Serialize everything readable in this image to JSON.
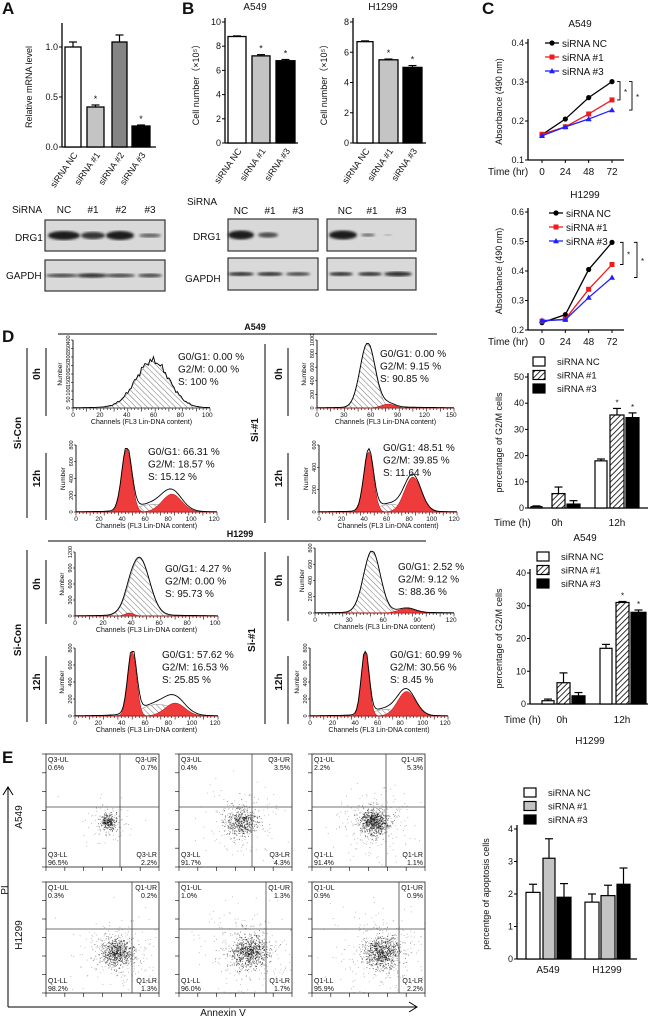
{
  "panel_labels": {
    "A": "A",
    "B": "B",
    "C": "C",
    "D": "D",
    "E": "E"
  },
  "colors": {
    "red": "#ee3b3b",
    "blue": "#1f1fff",
    "black": "#000000",
    "light_gray": "#c4c4c4",
    "dark_gray": "#858585"
  },
  "chart_data": [
    {
      "id": "A",
      "type": "bar",
      "title": "",
      "ylabel": "Relative mRNA level",
      "categories": [
        "siRNA NC",
        "siRNA #1",
        "siRNA #2",
        "siRNA #3"
      ],
      "values": [
        1.0,
        0.4,
        1.05,
        0.21
      ],
      "errors": [
        0.05,
        0.02,
        0.07,
        0.01
      ],
      "significance": [
        "",
        "*",
        "",
        "*"
      ],
      "ylim": [
        0,
        1.2
      ],
      "yticks": [
        "0.0",
        "0.5",
        "1.0"
      ],
      "fills": [
        "#ffffff",
        "#c4c4c4",
        "#858585",
        "#000000"
      ]
    },
    {
      "id": "B-A549",
      "type": "bar",
      "title": "A549",
      "ylabel": "Cell number（×10⁵）",
      "categories": [
        "siRNA NC",
        "siRNA #1",
        "siRNA #3"
      ],
      "values": [
        8.8,
        7.2,
        6.8
      ],
      "errors": [
        0.05,
        0.1,
        0.1
      ],
      "significance": [
        "",
        "*",
        "*"
      ],
      "ylim": [
        0,
        10
      ],
      "yticks": [
        "0",
        "2",
        "4",
        "6",
        "8",
        "10"
      ],
      "fills": [
        "#ffffff",
        "#c4c4c4",
        "#000000"
      ]
    },
    {
      "id": "B-H1299",
      "type": "bar",
      "title": "H1299",
      "ylabel": "Cell number（×10⁵）",
      "categories": [
        "siRNA NC",
        "siRNA #1",
        "siRNA #3"
      ],
      "values": [
        6.7,
        5.5,
        5.0
      ],
      "errors": [
        0.05,
        0.05,
        0.12
      ],
      "significance": [
        "",
        "*",
        "*"
      ],
      "ylim": [
        0,
        8
      ],
      "yticks": [
        "0",
        "2",
        "4",
        "6",
        "8"
      ],
      "fills": [
        "#ffffff",
        "#c4c4c4",
        "#000000"
      ]
    },
    {
      "id": "C-A549",
      "type": "line",
      "title": "A549",
      "xlabel": "Time (hr)",
      "ylabel": "Absorbance (490 nm)",
      "x": [
        0,
        24,
        48,
        72
      ],
      "xticks": [
        "0",
        "24",
        "48",
        "72"
      ],
      "ylim": [
        0.1,
        0.4
      ],
      "yticks": [
        "0.1",
        "0.2",
        "0.3",
        "0.4"
      ],
      "series": [
        {
          "name": "siRNA NC",
          "color": "#000000",
          "marker": "circle",
          "values": [
            0.165,
            0.205,
            0.26,
            0.301
          ]
        },
        {
          "name": "siRNA #1",
          "color": "#ee1c1c",
          "marker": "square",
          "values": [
            0.166,
            0.185,
            0.218,
            0.254
          ]
        },
        {
          "name": "siRNA #3",
          "color": "#1f1fff",
          "marker": "triangle",
          "values": [
            0.162,
            0.185,
            0.205,
            0.228
          ]
        }
      ],
      "significance": [
        "*",
        "*"
      ]
    },
    {
      "id": "C-H1299",
      "type": "line",
      "title": "H1299",
      "xlabel": "Time (hr)",
      "ylabel": "Absorbance (490 nm)",
      "x": [
        0,
        24,
        48,
        72
      ],
      "xticks": [
        "0",
        "24",
        "48",
        "72"
      ],
      "ylim": [
        0.2,
        0.6
      ],
      "yticks": [
        "0.2",
        "0.3",
        "0.4",
        "0.5",
        "0.6"
      ],
      "series": [
        {
          "name": "siRNA NC",
          "color": "#000000",
          "marker": "circle",
          "values": [
            0.225,
            0.252,
            0.405,
            0.497
          ]
        },
        {
          "name": "siRNA #1",
          "color": "#ee1c1c",
          "marker": "square",
          "values": [
            0.23,
            0.237,
            0.338,
            0.422
          ]
        },
        {
          "name": "siRNA #3",
          "color": "#1f1fff",
          "marker": "triangle",
          "values": [
            0.232,
            0.235,
            0.31,
            0.378
          ]
        }
      ],
      "significance": [
        "*",
        "*"
      ]
    },
    {
      "id": "D-A549",
      "type": "bar",
      "title": "A549",
      "xlabel": "Time (h)",
      "ylabel": "percentage of G2/M cells",
      "categories": [
        "0h",
        "12h"
      ],
      "ylim": [
        0,
        50
      ],
      "yticks": [
        "0",
        "10",
        "20",
        "30",
        "40",
        "50"
      ],
      "series": [
        {
          "name": "siRNA NC",
          "fill": "#ffffff",
          "values": [
            0.5,
            18
          ],
          "errors": [
            0.3,
            0.7
          ],
          "significance": [
            "",
            ""
          ]
        },
        {
          "name": "siRNA #1",
          "fill": "hatch",
          "values": [
            5.5,
            35.5
          ],
          "errors": [
            2.5,
            2.5
          ],
          "significance": [
            "",
            "*"
          ]
        },
        {
          "name": "siRNA #3",
          "fill": "#000000",
          "values": [
            1.5,
            34.5
          ],
          "errors": [
            1.3,
            1.8
          ],
          "significance": [
            "",
            "*"
          ]
        }
      ]
    },
    {
      "id": "D-H1299",
      "type": "bar",
      "title": "H1299",
      "xlabel": "Time (h)",
      "ylabel": "percentage of G2/M cells",
      "categories": [
        "0h",
        "12h"
      ],
      "ylim": [
        0,
        40
      ],
      "yticks": [
        "0",
        "10",
        "20",
        "30",
        "40"
      ],
      "series": [
        {
          "name": "siRNA NC",
          "fill": "#ffffff",
          "values": [
            1,
            17
          ],
          "errors": [
            0.5,
            1.2
          ],
          "significance": [
            "",
            ""
          ]
        },
        {
          "name": "siRNA #1",
          "fill": "hatch",
          "values": [
            6.5,
            31
          ],
          "errors": [
            3,
            0.3
          ],
          "significance": [
            "",
            "*"
          ]
        },
        {
          "name": "siRNA #3",
          "fill": "#000000",
          "values": [
            2.5,
            28
          ],
          "errors": [
            1,
            0.7
          ],
          "significance": [
            "",
            "*"
          ]
        }
      ]
    },
    {
      "id": "E",
      "type": "bar",
      "title": "",
      "xlabel": "",
      "ylabel": "percentge of apoptosis cells",
      "categories": [
        "A549",
        "H1299"
      ],
      "ylim": [
        0,
        4
      ],
      "yticks": [
        "0",
        "1",
        "2",
        "3",
        "4"
      ],
      "series": [
        {
          "name": "siRNA NC",
          "fill": "#ffffff",
          "values": [
            2.05,
            1.75
          ],
          "errors": [
            0.25,
            0.25
          ],
          "significance": [
            "",
            ""
          ]
        },
        {
          "name": "siRNA #1",
          "fill": "#c4c4c4",
          "values": [
            3.1,
            1.95
          ],
          "errors": [
            0.6,
            0.32
          ],
          "significance": [
            "",
            ""
          ]
        },
        {
          "name": "siRNA #3",
          "fill": "#000000",
          "values": [
            1.9,
            2.3
          ],
          "errors": [
            0.42,
            0.5
          ],
          "significance": [
            "",
            ""
          ]
        }
      ]
    }
  ],
  "blots": {
    "A": {
      "header": "SiRNA",
      "lanes": [
        "NC",
        "#1",
        "#2",
        "#3"
      ],
      "rows": [
        "DRG1",
        "GAPDH"
      ]
    },
    "B": {
      "header": "SiRNA",
      "lanes_a549": [
        "NC",
        "#1",
        "#3"
      ],
      "lanes_h1299": [
        "NC",
        "#1",
        "#3"
      ],
      "rows": [
        "DRG1",
        "GAPDH"
      ]
    }
  },
  "cell_cycle": {
    "headers": [
      "A549",
      "H1299"
    ],
    "conditions": [
      "Si-Con",
      "Si-#1"
    ],
    "times": [
      "0h",
      "12h"
    ],
    "xlabel": "Channels (FL3 Lin-DNA content)",
    "ylabel": "Number",
    "panels": [
      {
        "cell": "A549",
        "condition": "Si-Con",
        "time": "0h",
        "stats": [
          "G0/G1:   0.00 %",
          "G2/M:   0.00 %",
          "S:   100 %"
        ],
        "xticks": [
          "0",
          "20",
          "40",
          "60",
          "80",
          "100"
        ],
        "yticks": [
          "0",
          "50",
          "100",
          "150",
          "200",
          "250",
          "300",
          "350",
          "400"
        ]
      },
      {
        "cell": "A549",
        "condition": "Si-#1",
        "time": "0h",
        "stats": [
          "G0/G1:   0.00 %",
          "G2/M:   9.15 %",
          "S:   90.85 %"
        ],
        "xticks": [
          "0",
          "30",
          "60",
          "90",
          "120",
          "150"
        ],
        "yticks": [
          "0",
          "200",
          "400",
          "600",
          "800",
          "1000"
        ]
      },
      {
        "cell": "A549",
        "condition": "Si-Con",
        "time": "12h",
        "stats": [
          "G0/G1:   66.31 %",
          "G2/M:   18.57 %",
          "S:   15.12 %"
        ],
        "xticks": [
          "0",
          "20",
          "40",
          "60",
          "80",
          "100",
          "120"
        ],
        "yticks": [
          "0",
          "200",
          "400",
          "600",
          "800"
        ]
      },
      {
        "cell": "A549",
        "condition": "Si-#1",
        "time": "12h",
        "stats": [
          "G0/G1: 48.51 %",
          "G2/M:  39.85 %",
          "S:  11.64 %"
        ],
        "xticks": [
          "0",
          "20",
          "40",
          "60",
          "80",
          "100",
          "120"
        ],
        "yticks": [
          "0",
          "200",
          "400",
          "600"
        ]
      },
      {
        "cell": "H1299",
        "condition": "Si-Con",
        "time": "0h",
        "stats": [
          "G0/G1: 4.27 %",
          "G2/M: 0.00 %",
          "S:   95.73 %"
        ],
        "xticks": [
          "0",
          "20",
          "40",
          "60",
          "80",
          "100"
        ],
        "yticks": [
          "0",
          "300",
          "600",
          "900",
          "1200"
        ]
      },
      {
        "cell": "H1299",
        "condition": "Si-#1",
        "time": "0h",
        "stats": [
          "G0/G1: 2.52 %",
          "G2/M:  9.12 %",
          "S: 88.36 %"
        ],
        "xticks": [
          "0",
          "30",
          "60",
          "90",
          "120"
        ],
        "yticks": [
          "0",
          "200",
          "400",
          "600",
          "800"
        ]
      },
      {
        "cell": "H1299",
        "condition": "Si-Con",
        "time": "12h",
        "stats": [
          "G0/G1: 57.62 %",
          "G2/M:   16.53 %",
          "S:   25.85 %"
        ],
        "xticks": [
          "0",
          "20",
          "40",
          "60",
          "80",
          "100",
          "120"
        ],
        "yticks": [
          "0",
          "200",
          "400",
          "600",
          "800"
        ]
      },
      {
        "cell": "H1299",
        "condition": "Si-#1",
        "time": "12h",
        "stats": [
          "G0/G1: 60.99 %",
          "G2/M:   30.56 %",
          "S: 8.45 %"
        ],
        "xticks": [
          "0",
          "20",
          "40",
          "60",
          "80",
          "100",
          "120"
        ],
        "yticks": [
          "0",
          "200",
          "400",
          "600",
          "800"
        ]
      }
    ]
  },
  "apoptosis": {
    "xlabel": "Annexin V",
    "ylabel": "PI",
    "rows": [
      "A549",
      "H1299"
    ],
    "panels": [
      {
        "row": "A549",
        "quadrants": [
          [
            "Q3-UL",
            "0.6%"
          ],
          [
            "Q3-UR",
            "0.7%"
          ],
          [
            "Q3-LL",
            "96.5%"
          ],
          [
            "Q3-LR",
            "2.2%"
          ]
        ]
      },
      {
        "row": "A549",
        "quadrants": [
          [
            "Q3-UL",
            "0.4%"
          ],
          [
            "Q3-UR",
            "3.5%"
          ],
          [
            "Q3-LL",
            "91.7%"
          ],
          [
            "Q3-LR",
            "4.3%"
          ]
        ]
      },
      {
        "row": "A549",
        "quadrants": [
          [
            "Q1-UL",
            "2.2%"
          ],
          [
            "Q1-UR",
            "5.3%"
          ],
          [
            "Q1-LL",
            "91.4%"
          ],
          [
            "Q1-LR",
            "1.1%"
          ]
        ]
      },
      {
        "row": "H1299",
        "quadrants": [
          [
            "Q1-UL",
            "0.3%"
          ],
          [
            "Q1-UR",
            "0.2%"
          ],
          [
            "Q1-LL",
            "98.2%"
          ],
          [
            "Q1-LR",
            "1.3%"
          ]
        ]
      },
      {
        "row": "H1299",
        "quadrants": [
          [
            "Q1-UL",
            "1.0%"
          ],
          [
            "Q1-UR",
            "1.3%"
          ],
          [
            "Q1-LL",
            "96.0%"
          ],
          [
            "Q1-LR",
            "1.7%"
          ]
        ]
      },
      {
        "row": "H1299",
        "quadrants": [
          [
            "Q1-UL",
            "0.9%"
          ],
          [
            "Q1-UR",
            "0.9%"
          ],
          [
            "Q1-LL",
            "95.9%"
          ],
          [
            "Q1-LR",
            "2.2%"
          ]
        ]
      }
    ]
  }
}
